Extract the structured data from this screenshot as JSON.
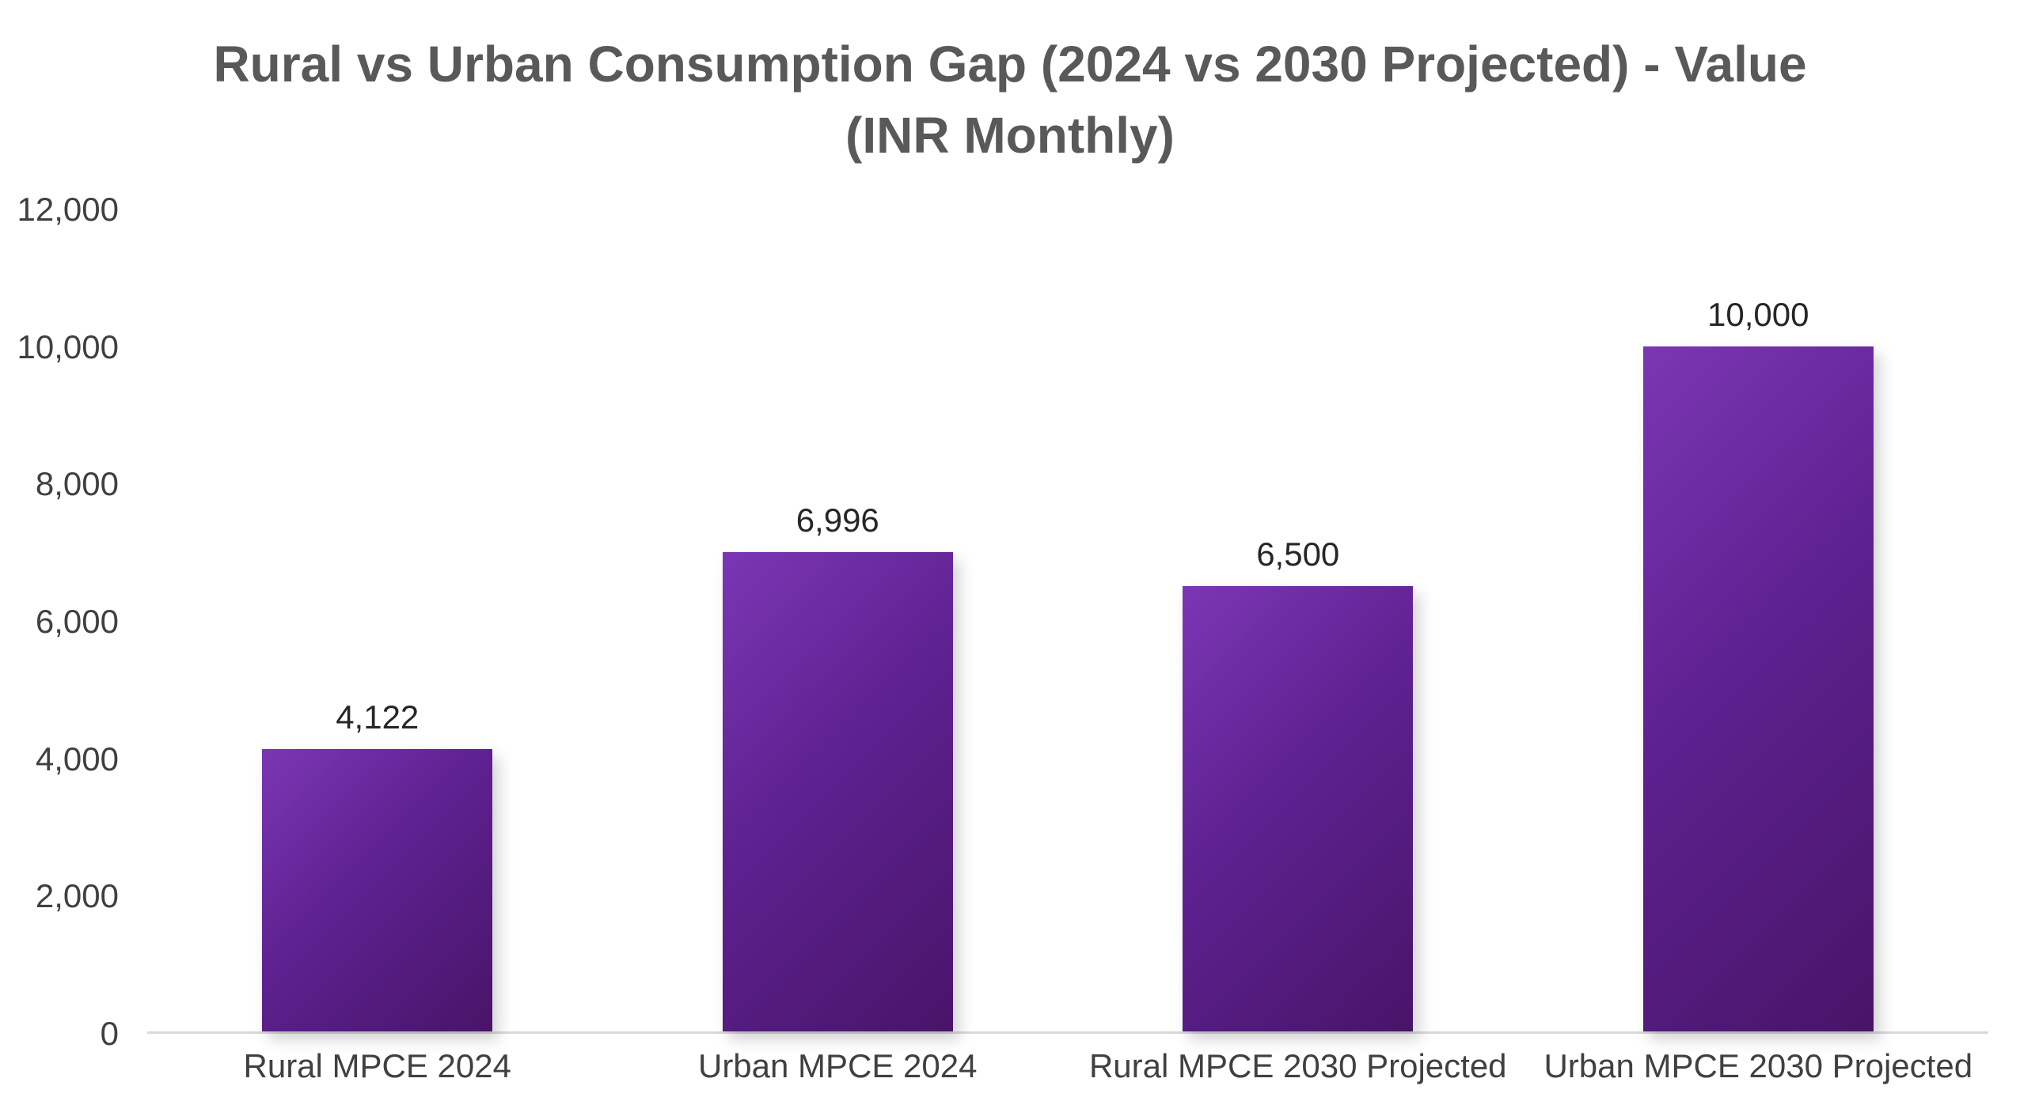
{
  "chart_data": {
    "type": "bar",
    "title": "Rural vs Urban Consumption Gap (2024 vs 2030 Projected) - Value (INR Monthly)",
    "title_line1": "Rural vs Urban Consumption Gap (2024 vs 2030 Projected) - Value",
    "title_line2": "(INR Monthly)",
    "categories": [
      "Rural MPCE 2024",
      "Urban MPCE 2024",
      "Rural MPCE 2030 Projected",
      "Urban MPCE 2030 Projected"
    ],
    "values": [
      4122,
      6996,
      6500,
      10000
    ],
    "data_labels": [
      "4,122",
      "6,996",
      "6,500",
      "10,000"
    ],
    "y_ticks": [
      0,
      2000,
      4000,
      6000,
      8000,
      10000,
      12000
    ],
    "y_tick_labels": [
      "0",
      "2,000",
      "4,000",
      "6,000",
      "8,000",
      "10,000",
      "12,000"
    ],
    "ylim": [
      0,
      12000
    ],
    "xlabel": "",
    "ylabel": "",
    "legend": "none",
    "grid": "off",
    "colors": {
      "bar_gradient_start": "#7b36b4",
      "bar_gradient_mid": "#5e2190",
      "bar_gradient_end": "#481468",
      "axis_line": "#d9d9d9",
      "tick_text": "#404040",
      "title_text": "#595959",
      "background": "#ffffff"
    }
  }
}
